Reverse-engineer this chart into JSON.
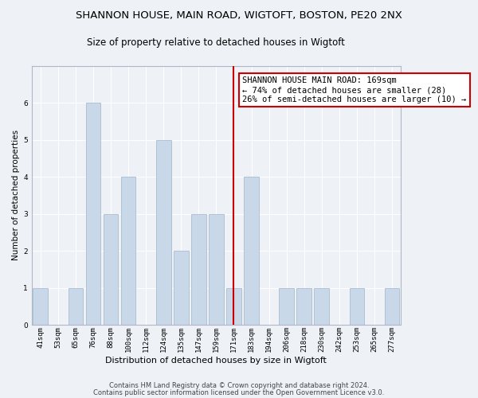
{
  "title_line1": "SHANNON HOUSE, MAIN ROAD, WIGTOFT, BOSTON, PE20 2NX",
  "title_line2": "Size of property relative to detached houses in Wigtoft",
  "xlabel": "Distribution of detached houses by size in Wigtoft",
  "ylabel": "Number of detached properties",
  "categories": [
    "41sqm",
    "53sqm",
    "65sqm",
    "76sqm",
    "88sqm",
    "100sqm",
    "112sqm",
    "124sqm",
    "135sqm",
    "147sqm",
    "159sqm",
    "171sqm",
    "183sqm",
    "194sqm",
    "206sqm",
    "218sqm",
    "230sqm",
    "242sqm",
    "253sqm",
    "265sqm",
    "277sqm"
  ],
  "values": [
    1,
    0,
    1,
    6,
    3,
    4,
    0,
    5,
    2,
    3,
    3,
    1,
    4,
    0,
    1,
    1,
    1,
    0,
    1,
    0,
    1
  ],
  "bar_color": "#c8d8e8",
  "bar_edgecolor": "#a8bccf",
  "highlight_index": 11,
  "highlight_color_line": "#cc0000",
  "annotation_text": "SHANNON HOUSE MAIN ROAD: 169sqm\n← 74% of detached houses are smaller (28)\n26% of semi-detached houses are larger (10) →",
  "annotation_box_edgecolor": "#cc0000",
  "annotation_box_facecolor": "#ffffff",
  "ylim": [
    0,
    7
  ],
  "yticks": [
    0,
    1,
    2,
    3,
    4,
    5,
    6
  ],
  "footer_line1": "Contains HM Land Registry data © Crown copyright and database right 2024.",
  "footer_line2": "Contains public sector information licensed under the Open Government Licence v3.0.",
  "background_color": "#eef2f7",
  "grid_color": "#ffffff",
  "title_fontsize": 9.5,
  "subtitle_fontsize": 8.5,
  "axis_label_fontsize": 7.5,
  "tick_fontsize": 6.5,
  "footer_fontsize": 6.0,
  "annotation_fontsize": 7.5
}
